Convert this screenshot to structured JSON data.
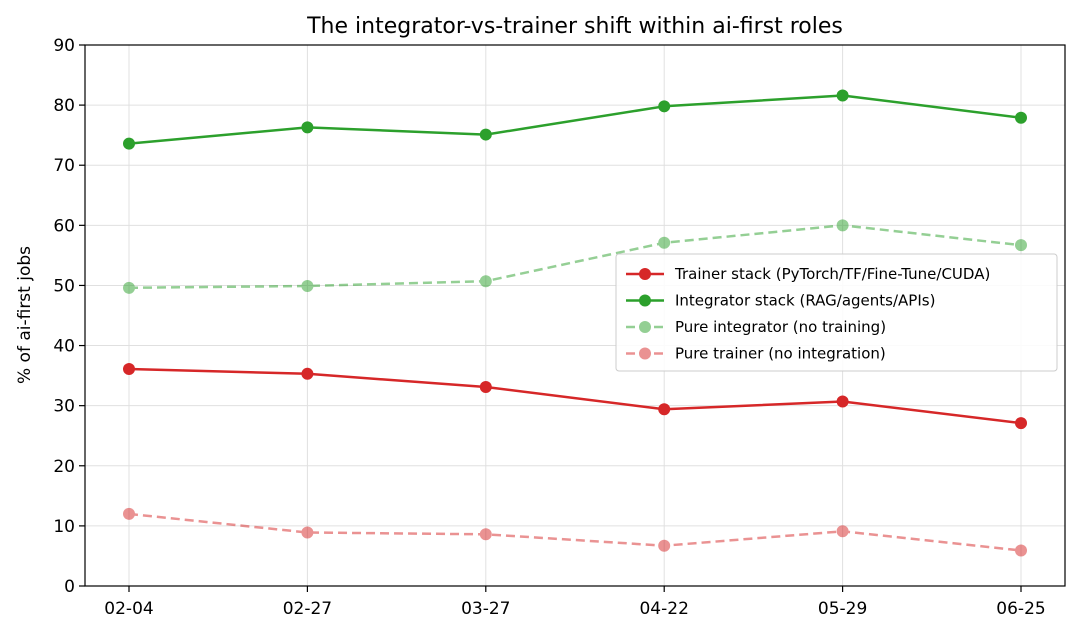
{
  "chart_data": {
    "type": "line",
    "title": "The integrator-vs-trainer shift within ai-first roles",
    "xlabel": "",
    "ylabel": "% of ai-first jobs",
    "categories": [
      "02-04",
      "02-27",
      "03-27",
      "04-22",
      "05-29",
      "06-25"
    ],
    "ylim": [
      0,
      90
    ],
    "yticks": [
      0,
      10,
      20,
      30,
      40,
      50,
      60,
      70,
      80,
      90
    ],
    "grid": true,
    "legend_position": "center-right",
    "series": [
      {
        "name": "Trainer stack (PyTorch/TF/Fine-Tune/CUDA)",
        "color": "#d62728",
        "style": "solid",
        "alpha": 1.0,
        "values": [
          36.1,
          35.3,
          33.1,
          29.4,
          30.7,
          27.1
        ]
      },
      {
        "name": "Integrator stack (RAG/agents/APIs)",
        "color": "#2ca02c",
        "style": "solid",
        "alpha": 1.0,
        "values": [
          73.6,
          76.3,
          75.1,
          79.8,
          81.6,
          77.9
        ]
      },
      {
        "name": "Pure integrator (no training)",
        "color": "#2ca02c",
        "style": "dashed",
        "alpha": 0.5,
        "values": [
          49.6,
          49.9,
          50.7,
          57.1,
          60.0,
          56.7
        ]
      },
      {
        "name": "Pure trainer (no integration)",
        "color": "#d62728",
        "style": "dashed",
        "alpha": 0.5,
        "values": [
          12.0,
          8.9,
          8.6,
          6.7,
          9.1,
          5.9
        ]
      }
    ]
  }
}
